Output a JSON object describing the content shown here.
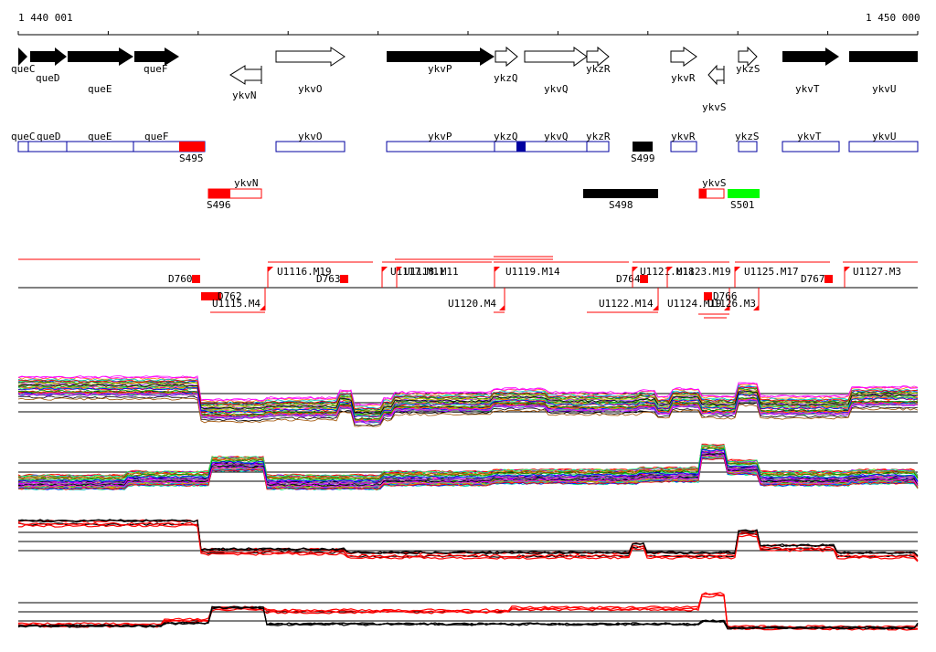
{
  "ruler": {
    "start_label": "1 440 001",
    "end_label": "1 450 000"
  },
  "genes": [
    {
      "name": "queC",
      "dir": "+",
      "filled": true
    },
    {
      "name": "queD",
      "dir": "+",
      "filled": true
    },
    {
      "name": "queE",
      "dir": "+",
      "filled": true
    },
    {
      "name": "queF",
      "dir": "+",
      "filled": true
    },
    {
      "name": "ykvN",
      "dir": "-",
      "filled": false
    },
    {
      "name": "ykvO",
      "dir": "+",
      "filled": false
    },
    {
      "name": "ykvP",
      "dir": "+",
      "filled": true
    },
    {
      "name": "ykzQ",
      "dir": "+",
      "filled": false
    },
    {
      "name": "ykvQ",
      "dir": "+",
      "filled": false
    },
    {
      "name": "ykzR",
      "dir": "+",
      "filled": false
    },
    {
      "name": "ykvR",
      "dir": "+",
      "filled": false
    },
    {
      "name": "ykvS",
      "dir": "-",
      "filled": false
    },
    {
      "name": "ykzS",
      "dir": "+",
      "filled": false
    },
    {
      "name": "ykvT",
      "dir": "+",
      "filled": true
    },
    {
      "name": "ykvU",
      "dir": "+",
      "filled": true
    }
  ],
  "annotations": [
    {
      "name": "queC"
    },
    {
      "name": "queD"
    },
    {
      "name": "queE"
    },
    {
      "name": "queF"
    },
    {
      "name": "ykvO"
    },
    {
      "name": "ykvP"
    },
    {
      "name": "ykzQ"
    },
    {
      "name": "ykvQ"
    },
    {
      "name": "ykzR"
    },
    {
      "name": "ykvR"
    },
    {
      "name": "ykzS"
    },
    {
      "name": "ykvT"
    },
    {
      "name": "ykvU"
    },
    {
      "name": "ykvN"
    },
    {
      "name": "ykvS"
    }
  ],
  "segments": [
    {
      "name": "S495",
      "color": "#ff0000"
    },
    {
      "name": "S499",
      "color": "#000000"
    },
    {
      "name": "S496",
      "color": "#ff0000"
    },
    {
      "name": "S498",
      "color": "#000000"
    },
    {
      "name": "S501",
      "color": "#00ff00"
    }
  ],
  "features": [
    "D760",
    "U1116.M19",
    "D763",
    "U1117.M11",
    "U1118.M11",
    "U1119.M14",
    "D764",
    "U1121.M18",
    "U1123.M19",
    "U1125.M17",
    "D767",
    "U1127.M3",
    "D762",
    "U1115.M4",
    "U1120.M4",
    "U1122.M14",
    "U1124.M19",
    "D766",
    "U1126.M3"
  ],
  "colors": {
    "track_line": "#000000",
    "red": "#ff0000",
    "blue": "#0000a0",
    "green": "#00ff00"
  }
}
